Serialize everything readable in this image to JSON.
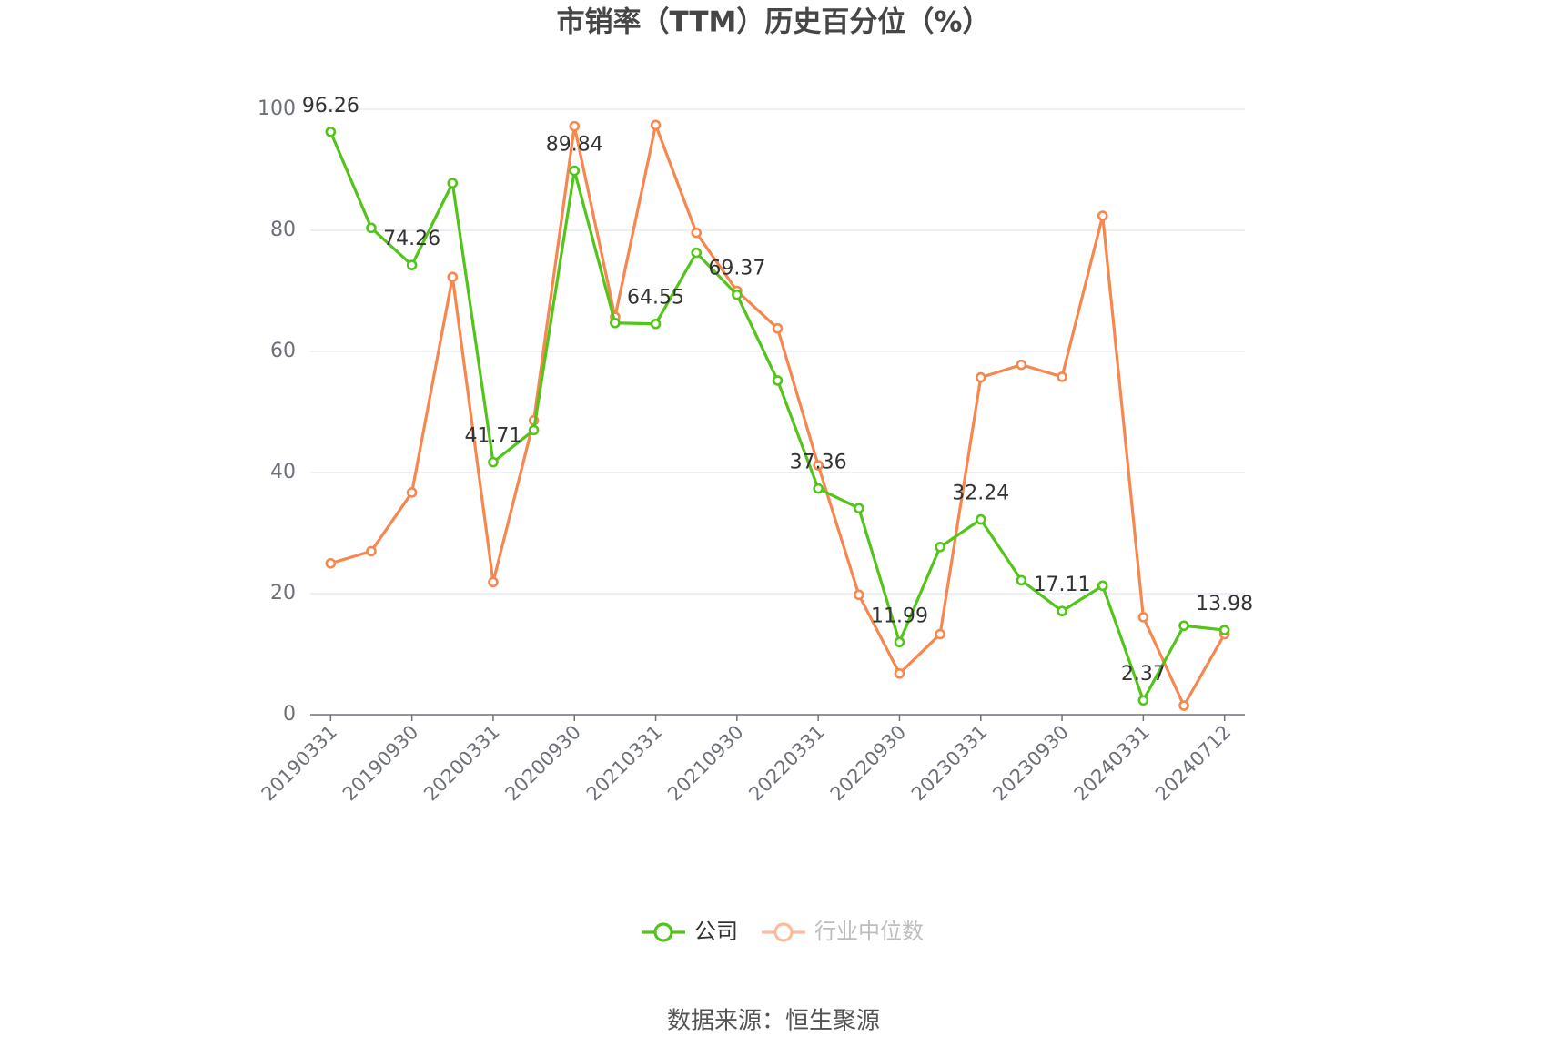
{
  "chart_data": {
    "type": "line",
    "title": "市销率（TTM）历史百分位（%）",
    "source": "数据来源：恒生聚源",
    "categories": [
      "20190331",
      null,
      "20190930",
      null,
      "20200331",
      null,
      "20200930",
      null,
      "20210331",
      null,
      "20210930",
      null,
      "20220331",
      null,
      "20220930",
      null,
      "20230331",
      null,
      "20230930",
      null,
      "20240331",
      null,
      "20240712"
    ],
    "series": [
      {
        "name": "公司",
        "color": "#52c41a",
        "values": [
          96.26,
          80.4,
          74.26,
          87.8,
          41.71,
          47.0,
          89.84,
          64.7,
          64.55,
          76.3,
          69.37,
          55.2,
          37.36,
          34.1,
          11.99,
          27.7,
          32.24,
          22.2,
          17.11,
          21.3,
          2.37,
          14.7,
          13.98
        ],
        "value_labels": [
          "96.26",
          null,
          "74.26",
          null,
          "41.71",
          null,
          "89.84",
          null,
          "64.55",
          null,
          "69.37",
          null,
          "37.36",
          null,
          "11.99",
          null,
          "32.24",
          null,
          "17.11",
          null,
          "2.37",
          null,
          "13.98"
        ]
      },
      {
        "name": "行业中位数",
        "color": "#f5874f",
        "values": [
          25.0,
          27.0,
          36.7,
          72.3,
          21.9,
          48.6,
          97.2,
          65.7,
          97.4,
          79.6,
          70.0,
          63.8,
          41.2,
          19.8,
          6.8,
          13.3,
          55.7,
          57.8,
          55.8,
          82.4,
          16.1,
          1.5,
          13.3
        ]
      }
    ],
    "ylim": [
      0,
      100
    ],
    "yticks": [
      0,
      20,
      40,
      60,
      80,
      100
    ],
    "grid": true,
    "legend": "bottom"
  }
}
